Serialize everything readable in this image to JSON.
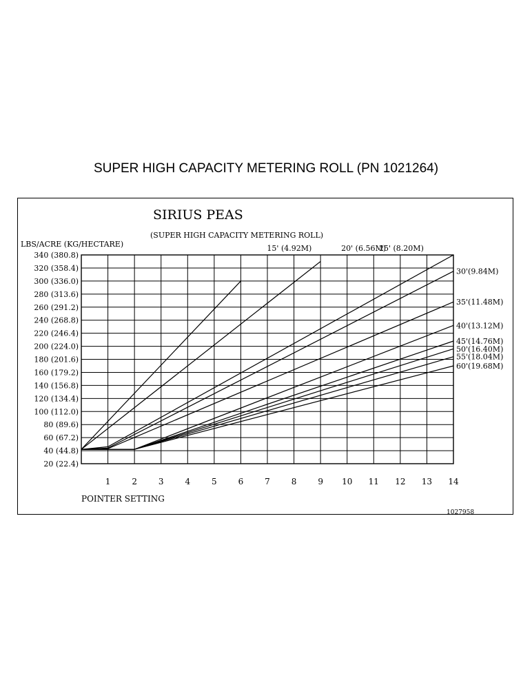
{
  "page": {
    "title": "SUPER HIGH CAPACITY METERING ROLL  (PN  1021264)"
  },
  "chart_data": {
    "type": "line",
    "title": "SIRIUS PEAS",
    "subtitle": "(SUPER HIGH CAPACITY METERING ROLL)",
    "ylabel": "LBS/ACRE (KG/HECTARE)",
    "xlabel": "POINTER SETTING",
    "figure_id": "1027958",
    "ylim": [
      20,
      340
    ],
    "xlim": [
      0,
      14
    ],
    "x_ticks": [
      "1",
      "2",
      "3",
      "4",
      "5",
      "6",
      "7",
      "8",
      "9",
      "10",
      "11",
      "12",
      "13",
      "14"
    ],
    "y_ticks": [
      {
        "value": 340,
        "label": "340 (380.8)"
      },
      {
        "value": 320,
        "label": "320 (358.4)"
      },
      {
        "value": 300,
        "label": "300 (336.0)"
      },
      {
        "value": 280,
        "label": "280 (313.6)"
      },
      {
        "value": 260,
        "label": "260 (291.2)"
      },
      {
        "value": 240,
        "label": "240 (268.8)"
      },
      {
        "value": 220,
        "label": "220 (246.4)"
      },
      {
        "value": 200,
        "label": "200 (224.0)"
      },
      {
        "value": 180,
        "label": "180 (201.6)"
      },
      {
        "value": 160,
        "label": "160 (179.2)"
      },
      {
        "value": 140,
        "label": "140 (156.8)"
      },
      {
        "value": 120,
        "label": "120 (134.4)"
      },
      {
        "value": 100,
        "label": "100 (112.0)"
      },
      {
        "value": 80,
        "label": "80 (89.6)"
      },
      {
        "value": 60,
        "label": "60 (67.2)"
      },
      {
        "value": 40,
        "label": "40 (44.8)"
      },
      {
        "value": 20,
        "label": "20 (22.4)"
      }
    ],
    "grid": true,
    "series": [
      {
        "name": "15' (4.92M)",
        "label_position": "top",
        "points": [
          [
            0,
            42
          ],
          [
            6,
            300
          ]
        ]
      },
      {
        "name": "20' (6.56M)",
        "label_position": "top",
        "points": [
          [
            0,
            42
          ],
          [
            9,
            330
          ]
        ]
      },
      {
        "name": "25' (8.20M)",
        "label_position": "top",
        "points": [
          [
            0,
            42
          ],
          [
            1,
            46
          ],
          [
            14,
            340
          ]
        ]
      },
      {
        "name": "30'(9.84M)",
        "label_position": "right",
        "points": [
          [
            0,
            42
          ],
          [
            1,
            44
          ],
          [
            14,
            315
          ]
        ]
      },
      {
        "name": "35'(11.48M)",
        "label_position": "right",
        "points": [
          [
            0,
            42
          ],
          [
            1,
            43
          ],
          [
            14,
            268
          ]
        ]
      },
      {
        "name": "40'(13.12M)",
        "label_position": "right",
        "points": [
          [
            0,
            42
          ],
          [
            2,
            42
          ],
          [
            14,
            232
          ]
        ]
      },
      {
        "name": "45'(14.76M)",
        "label_position": "right",
        "points": [
          [
            0,
            42
          ],
          [
            2,
            42
          ],
          [
            14,
            208
          ]
        ]
      },
      {
        "name": "50'(16.40M)",
        "label_position": "right",
        "points": [
          [
            0,
            42
          ],
          [
            2,
            42
          ],
          [
            14,
            196
          ]
        ]
      },
      {
        "name": "55'(18.04M)",
        "label_position": "right",
        "points": [
          [
            0,
            42
          ],
          [
            2,
            42
          ],
          [
            14,
            184
          ]
        ]
      },
      {
        "name": "60'(19.68M)",
        "label_position": "right",
        "points": [
          [
            0,
            42
          ],
          [
            2,
            42
          ],
          [
            14,
            170
          ]
        ]
      }
    ]
  }
}
